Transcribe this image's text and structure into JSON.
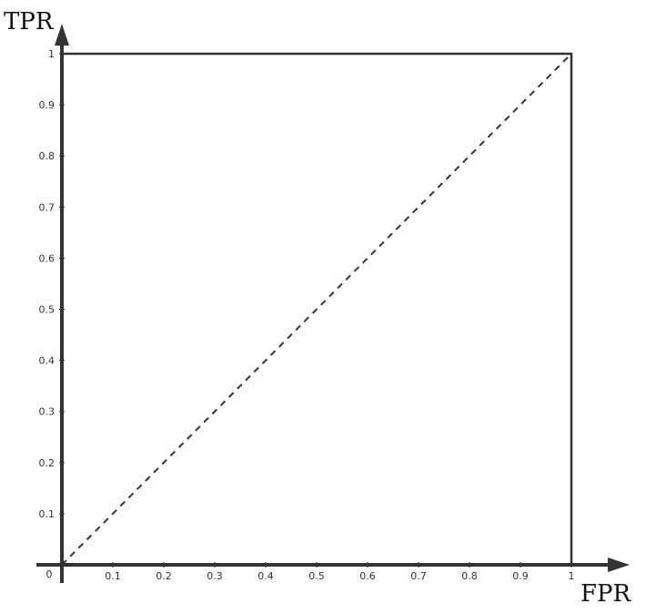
{
  "chart_data": {
    "type": "line",
    "title": "",
    "xlabel": "FPR",
    "ylabel": "TPR",
    "xlim": [
      0,
      1
    ],
    "ylim": [
      0,
      1
    ],
    "origin_label": "0",
    "x_ticks": [
      "0.1",
      "0.2",
      "0.3",
      "0.4",
      "0.5",
      "0.6",
      "0.7",
      "0.8",
      "0.9",
      "1"
    ],
    "y_ticks": [
      "0.1",
      "0.2",
      "0.3",
      "0.4",
      "0.5",
      "0.6",
      "0.7",
      "0.8",
      "0.9",
      "1"
    ],
    "grid": false,
    "series": [
      {
        "style": "solid",
        "color": "#333333",
        "points": [
          [
            0,
            0
          ],
          [
            0,
            1
          ],
          [
            1,
            1
          ],
          [
            1,
            0
          ]
        ]
      },
      {
        "style": "dashed",
        "color": "#333333",
        "points": [
          [
            0,
            0
          ],
          [
            1,
            1
          ]
        ]
      }
    ]
  }
}
